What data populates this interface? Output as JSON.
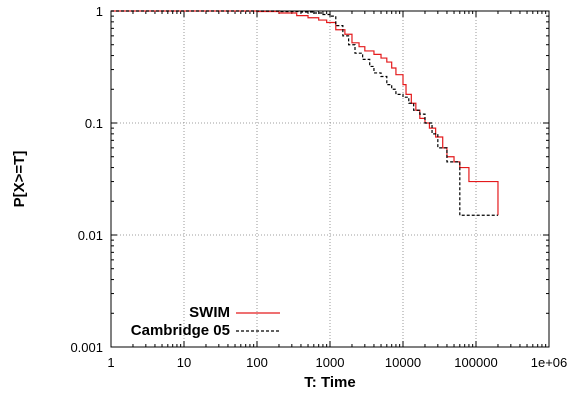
{
  "chart_data": {
    "type": "line",
    "xlabel": "T: Time",
    "ylabel": "P[X>=T]",
    "xscale": "log",
    "yscale": "log",
    "xlim": [
      1,
      1000000
    ],
    "ylim": [
      0.001,
      1
    ],
    "x_ticks": [
      1,
      10,
      100,
      1000,
      10000,
      100000,
      1000000
    ],
    "x_tick_labels": [
      "1",
      "10",
      "100",
      "1000",
      "10000",
      "100000",
      "1e+06"
    ],
    "y_ticks": [
      0.001,
      0.01,
      0.1,
      1
    ],
    "y_tick_labels": [
      "0.001",
      "0.01",
      "0.1",
      "1"
    ],
    "grid": true,
    "legend_position": "bottom-left",
    "series": [
      {
        "name": "SWIM",
        "color": "#e41a1c",
        "dash": "solid",
        "x": [
          1,
          100,
          200,
          350,
          500,
          700,
          900,
          1200,
          1600,
          2000,
          2500,
          3000,
          4000,
          5000,
          6000,
          7000,
          8000,
          10000,
          11000,
          13000,
          15000,
          17000,
          20000,
          23000,
          28000,
          35000,
          40000,
          50000,
          60000,
          80000,
          100000,
          150000,
          200000
        ],
        "y": [
          1,
          0.99,
          0.96,
          0.91,
          0.87,
          0.83,
          0.79,
          0.68,
          0.62,
          0.52,
          0.48,
          0.44,
          0.41,
          0.38,
          0.35,
          0.31,
          0.27,
          0.22,
          0.18,
          0.15,
          0.13,
          0.11,
          0.1,
          0.09,
          0.075,
          0.06,
          0.05,
          0.045,
          0.04,
          0.03,
          0.03,
          0.03,
          0.015
        ]
      },
      {
        "name": "Cambridge 05",
        "color": "#000000",
        "dash": "dashed",
        "x": [
          1,
          200,
          400,
          600,
          800,
          1000,
          1200,
          1500,
          1800,
          2200,
          2800,
          3500,
          4000,
          5000,
          6000,
          7000,
          8000,
          10000,
          12000,
          14000,
          17000,
          20000,
          25000,
          30000,
          40000,
          50000,
          60000,
          100000,
          150000,
          200000
        ],
        "y": [
          1,
          0.99,
          0.98,
          0.96,
          0.93,
          0.9,
          0.74,
          0.6,
          0.5,
          0.42,
          0.37,
          0.32,
          0.28,
          0.26,
          0.22,
          0.2,
          0.18,
          0.17,
          0.15,
          0.13,
          0.12,
          0.1,
          0.08,
          0.06,
          0.045,
          0.045,
          0.015,
          0.015,
          0.015,
          0.015
        ]
      }
    ]
  }
}
